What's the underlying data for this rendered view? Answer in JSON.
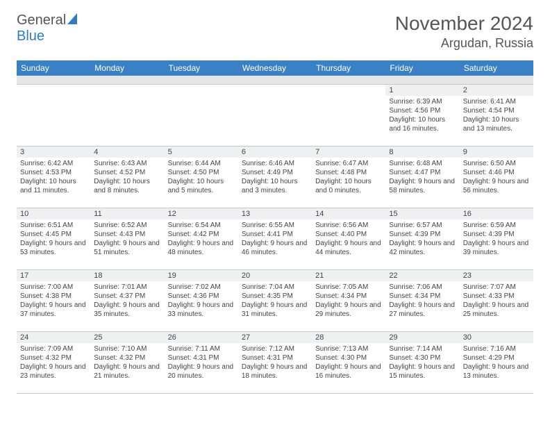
{
  "logo": {
    "general": "General",
    "blue": "Blue"
  },
  "title": "November 2024",
  "location": "Argudan, Russia",
  "colors": {
    "header_bg": "#3a80c4",
    "header_text": "#ffffff",
    "daynum_bg": "#eef0f2",
    "grayband": "#e6e6e6",
    "border": "#c8c8c8",
    "text": "#444444"
  },
  "day_names": [
    "Sunday",
    "Monday",
    "Tuesday",
    "Wednesday",
    "Thursday",
    "Friday",
    "Saturday"
  ],
  "weeks": [
    [
      {
        "n": "",
        "lines": []
      },
      {
        "n": "",
        "lines": []
      },
      {
        "n": "",
        "lines": []
      },
      {
        "n": "",
        "lines": []
      },
      {
        "n": "",
        "lines": []
      },
      {
        "n": "1",
        "lines": [
          "Sunrise: 6:39 AM",
          "Sunset: 4:56 PM",
          "Daylight: 10 hours and 16 minutes."
        ]
      },
      {
        "n": "2",
        "lines": [
          "Sunrise: 6:41 AM",
          "Sunset: 4:54 PM",
          "Daylight: 10 hours and 13 minutes."
        ]
      }
    ],
    [
      {
        "n": "3",
        "lines": [
          "Sunrise: 6:42 AM",
          "Sunset: 4:53 PM",
          "Daylight: 10 hours and 11 minutes."
        ]
      },
      {
        "n": "4",
        "lines": [
          "Sunrise: 6:43 AM",
          "Sunset: 4:52 PM",
          "Daylight: 10 hours and 8 minutes."
        ]
      },
      {
        "n": "5",
        "lines": [
          "Sunrise: 6:44 AM",
          "Sunset: 4:50 PM",
          "Daylight: 10 hours and 5 minutes."
        ]
      },
      {
        "n": "6",
        "lines": [
          "Sunrise: 6:46 AM",
          "Sunset: 4:49 PM",
          "Daylight: 10 hours and 3 minutes."
        ]
      },
      {
        "n": "7",
        "lines": [
          "Sunrise: 6:47 AM",
          "Sunset: 4:48 PM",
          "Daylight: 10 hours and 0 minutes."
        ]
      },
      {
        "n": "8",
        "lines": [
          "Sunrise: 6:48 AM",
          "Sunset: 4:47 PM",
          "Daylight: 9 hours and 58 minutes."
        ]
      },
      {
        "n": "9",
        "lines": [
          "Sunrise: 6:50 AM",
          "Sunset: 4:46 PM",
          "Daylight: 9 hours and 56 minutes."
        ]
      }
    ],
    [
      {
        "n": "10",
        "lines": [
          "Sunrise: 6:51 AM",
          "Sunset: 4:45 PM",
          "Daylight: 9 hours and 53 minutes."
        ]
      },
      {
        "n": "11",
        "lines": [
          "Sunrise: 6:52 AM",
          "Sunset: 4:43 PM",
          "Daylight: 9 hours and 51 minutes."
        ]
      },
      {
        "n": "12",
        "lines": [
          "Sunrise: 6:54 AM",
          "Sunset: 4:42 PM",
          "Daylight: 9 hours and 48 minutes."
        ]
      },
      {
        "n": "13",
        "lines": [
          "Sunrise: 6:55 AM",
          "Sunset: 4:41 PM",
          "Daylight: 9 hours and 46 minutes."
        ]
      },
      {
        "n": "14",
        "lines": [
          "Sunrise: 6:56 AM",
          "Sunset: 4:40 PM",
          "Daylight: 9 hours and 44 minutes."
        ]
      },
      {
        "n": "15",
        "lines": [
          "Sunrise: 6:57 AM",
          "Sunset: 4:39 PM",
          "Daylight: 9 hours and 42 minutes."
        ]
      },
      {
        "n": "16",
        "lines": [
          "Sunrise: 6:59 AM",
          "Sunset: 4:39 PM",
          "Daylight: 9 hours and 39 minutes."
        ]
      }
    ],
    [
      {
        "n": "17",
        "lines": [
          "Sunrise: 7:00 AM",
          "Sunset: 4:38 PM",
          "Daylight: 9 hours and 37 minutes."
        ]
      },
      {
        "n": "18",
        "lines": [
          "Sunrise: 7:01 AM",
          "Sunset: 4:37 PM",
          "Daylight: 9 hours and 35 minutes."
        ]
      },
      {
        "n": "19",
        "lines": [
          "Sunrise: 7:02 AM",
          "Sunset: 4:36 PM",
          "Daylight: 9 hours and 33 minutes."
        ]
      },
      {
        "n": "20",
        "lines": [
          "Sunrise: 7:04 AM",
          "Sunset: 4:35 PM",
          "Daylight: 9 hours and 31 minutes."
        ]
      },
      {
        "n": "21",
        "lines": [
          "Sunrise: 7:05 AM",
          "Sunset: 4:34 PM",
          "Daylight: 9 hours and 29 minutes."
        ]
      },
      {
        "n": "22",
        "lines": [
          "Sunrise: 7:06 AM",
          "Sunset: 4:34 PM",
          "Daylight: 9 hours and 27 minutes."
        ]
      },
      {
        "n": "23",
        "lines": [
          "Sunrise: 7:07 AM",
          "Sunset: 4:33 PM",
          "Daylight: 9 hours and 25 minutes."
        ]
      }
    ],
    [
      {
        "n": "24",
        "lines": [
          "Sunrise: 7:09 AM",
          "Sunset: 4:32 PM",
          "Daylight: 9 hours and 23 minutes."
        ]
      },
      {
        "n": "25",
        "lines": [
          "Sunrise: 7:10 AM",
          "Sunset: 4:32 PM",
          "Daylight: 9 hours and 21 minutes."
        ]
      },
      {
        "n": "26",
        "lines": [
          "Sunrise: 7:11 AM",
          "Sunset: 4:31 PM",
          "Daylight: 9 hours and 20 minutes."
        ]
      },
      {
        "n": "27",
        "lines": [
          "Sunrise: 7:12 AM",
          "Sunset: 4:31 PM",
          "Daylight: 9 hours and 18 minutes."
        ]
      },
      {
        "n": "28",
        "lines": [
          "Sunrise: 7:13 AM",
          "Sunset: 4:30 PM",
          "Daylight: 9 hours and 16 minutes."
        ]
      },
      {
        "n": "29",
        "lines": [
          "Sunrise: 7:14 AM",
          "Sunset: 4:30 PM",
          "Daylight: 9 hours and 15 minutes."
        ]
      },
      {
        "n": "30",
        "lines": [
          "Sunrise: 7:16 AM",
          "Sunset: 4:29 PM",
          "Daylight: 9 hours and 13 minutes."
        ]
      }
    ]
  ]
}
